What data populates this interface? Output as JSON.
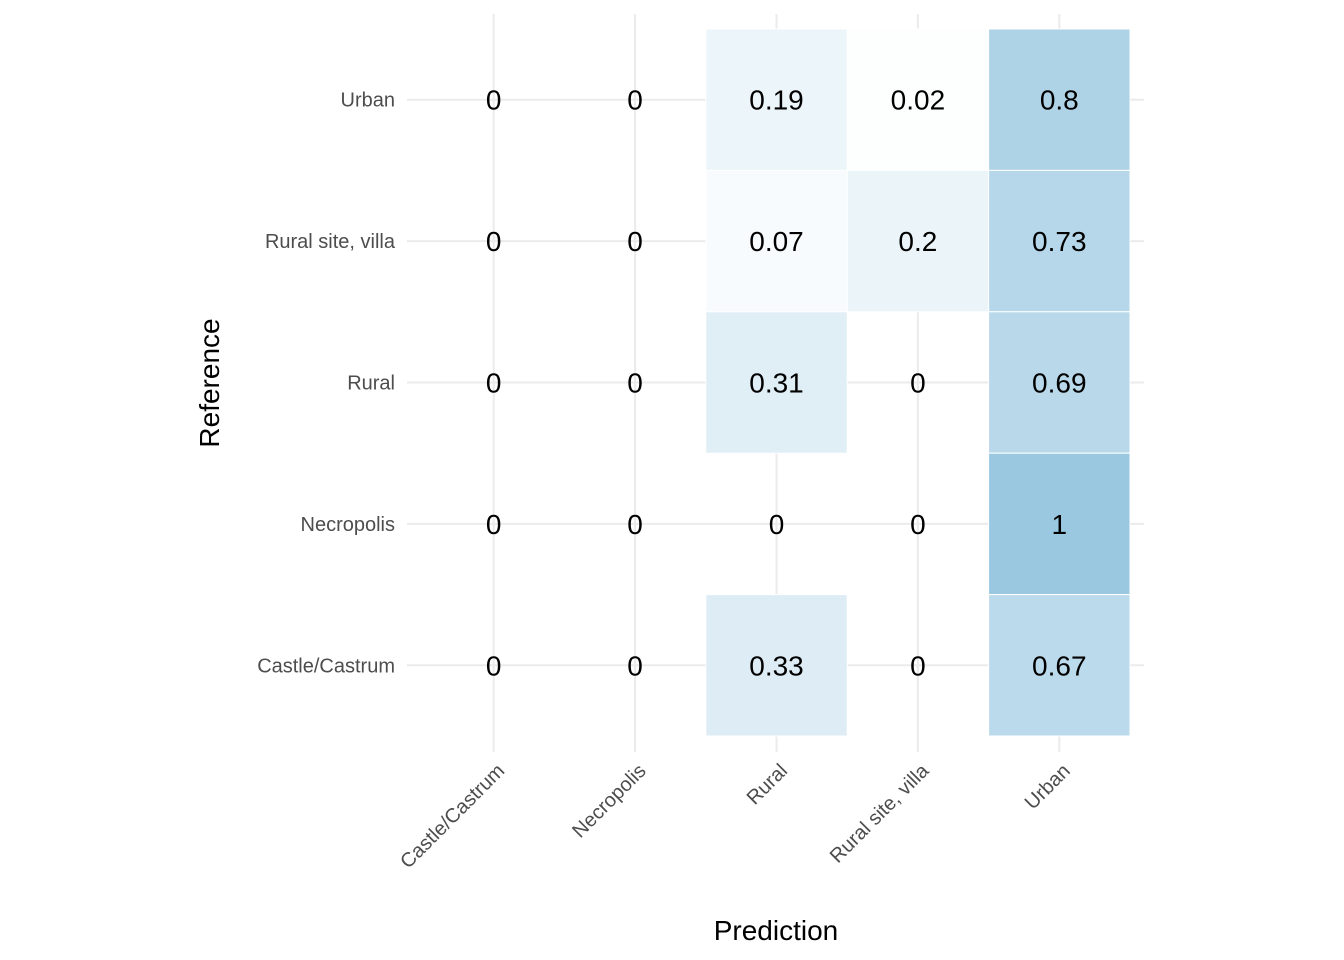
{
  "chart_data": {
    "type": "heatmap",
    "title": "",
    "xlabel": "Prediction",
    "ylabel": "Reference",
    "x_categories": [
      "Castle/Castrum",
      "Necropolis",
      "Rural",
      "Rural site, villa",
      "Urban"
    ],
    "y_categories": [
      "Castle/Castrum",
      "Necropolis",
      "Rural",
      "Rural site, villa",
      "Urban"
    ],
    "values": [
      {
        "reference": "Urban",
        "prediction": "Castle/Castrum",
        "value": 0
      },
      {
        "reference": "Urban",
        "prediction": "Necropolis",
        "value": 0
      },
      {
        "reference": "Urban",
        "prediction": "Rural",
        "value": 0.19
      },
      {
        "reference": "Urban",
        "prediction": "Rural site, villa",
        "value": 0.02
      },
      {
        "reference": "Urban",
        "prediction": "Urban",
        "value": 0.8
      },
      {
        "reference": "Rural site, villa",
        "prediction": "Castle/Castrum",
        "value": 0
      },
      {
        "reference": "Rural site, villa",
        "prediction": "Necropolis",
        "value": 0
      },
      {
        "reference": "Rural site, villa",
        "prediction": "Rural",
        "value": 0.07
      },
      {
        "reference": "Rural site, villa",
        "prediction": "Rural site, villa",
        "value": 0.2
      },
      {
        "reference": "Rural site, villa",
        "prediction": "Urban",
        "value": 0.73
      },
      {
        "reference": "Rural",
        "prediction": "Castle/Castrum",
        "value": 0
      },
      {
        "reference": "Rural",
        "prediction": "Necropolis",
        "value": 0
      },
      {
        "reference": "Rural",
        "prediction": "Rural",
        "value": 0.31
      },
      {
        "reference": "Rural",
        "prediction": "Rural site, villa",
        "value": 0
      },
      {
        "reference": "Rural",
        "prediction": "Urban",
        "value": 0.69
      },
      {
        "reference": "Necropolis",
        "prediction": "Castle/Castrum",
        "value": 0
      },
      {
        "reference": "Necropolis",
        "prediction": "Necropolis",
        "value": 0
      },
      {
        "reference": "Necropolis",
        "prediction": "Rural",
        "value": 0
      },
      {
        "reference": "Necropolis",
        "prediction": "Rural site, villa",
        "value": 0
      },
      {
        "reference": "Necropolis",
        "prediction": "Urban",
        "value": 1
      },
      {
        "reference": "Castle/Castrum",
        "prediction": "Castle/Castrum",
        "value": 0
      },
      {
        "reference": "Castle/Castrum",
        "prediction": "Necropolis",
        "value": 0
      },
      {
        "reference": "Castle/Castrum",
        "prediction": "Rural",
        "value": 0.33
      },
      {
        "reference": "Castle/Castrum",
        "prediction": "Rural site, villa",
        "value": 0
      },
      {
        "reference": "Castle/Castrum",
        "prediction": "Urban",
        "value": 0.67
      }
    ],
    "color_scale": {
      "low": "#ffffff",
      "high": "#9ac8e1",
      "min": 0,
      "max": 1
    },
    "grid": true,
    "legend": "none"
  }
}
